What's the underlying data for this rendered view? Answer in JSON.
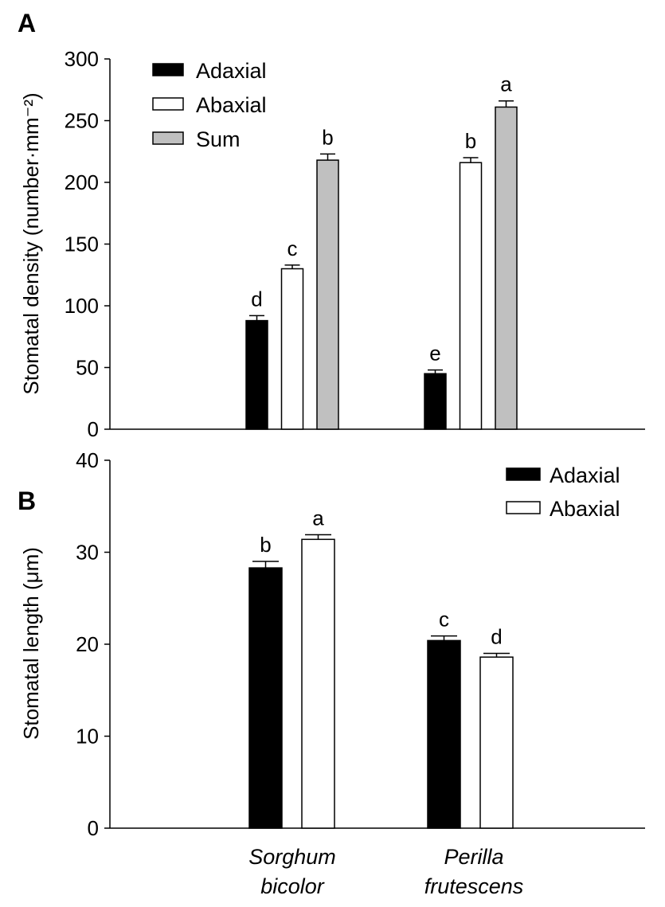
{
  "colors": {
    "adaxial": "#000000",
    "abaxial": "#ffffff",
    "sum": "#c0c0c0",
    "outline": "#000000"
  },
  "categories": [
    "Sorghum bicolor",
    "Perilla frutescens"
  ],
  "category_lines": [
    [
      "Sorghum",
      "bicolor"
    ],
    [
      "Perilla",
      "frutescens"
    ]
  ],
  "chart_data": [
    {
      "type": "bar",
      "panel": "A",
      "ylabel": "Stomatal density (number·mm⁻²)",
      "ylim": [
        0,
        300
      ],
      "yticks": [
        0,
        50,
        100,
        150,
        200,
        250,
        300
      ],
      "categories": [
        "Sorghum bicolor",
        "Perilla frutescens"
      ],
      "legend_position": "top-left",
      "series": [
        {
          "name": "Adaxial",
          "color": "#000000",
          "values": [
            88,
            45
          ],
          "errors": [
            4,
            3
          ],
          "labels": [
            "d",
            "e"
          ]
        },
        {
          "name": "Abaxial",
          "color": "#ffffff",
          "values": [
            130,
            216
          ],
          "errors": [
            3,
            4
          ],
          "labels": [
            "c",
            "b"
          ]
        },
        {
          "name": "Sum",
          "color": "#c0c0c0",
          "values": [
            218,
            261
          ],
          "errors": [
            5,
            5
          ],
          "labels": [
            "b",
            "a"
          ]
        }
      ]
    },
    {
      "type": "bar",
      "panel": "B",
      "ylabel": "Stomatal length (μm)",
      "ylim": [
        0,
        40
      ],
      "yticks": [
        0,
        10,
        20,
        30,
        40
      ],
      "categories": [
        "Sorghum bicolor",
        "Perilla frutescens"
      ],
      "legend_position": "top-right",
      "series": [
        {
          "name": "Adaxial",
          "color": "#000000",
          "values": [
            28.3,
            20.4
          ],
          "errors": [
            0.7,
            0.5
          ],
          "labels": [
            "b",
            "c"
          ]
        },
        {
          "name": "Abaxial",
          "color": "#ffffff",
          "values": [
            31.4,
            18.6
          ],
          "errors": [
            0.5,
            0.4
          ],
          "labels": [
            "a",
            "d"
          ]
        }
      ]
    }
  ]
}
